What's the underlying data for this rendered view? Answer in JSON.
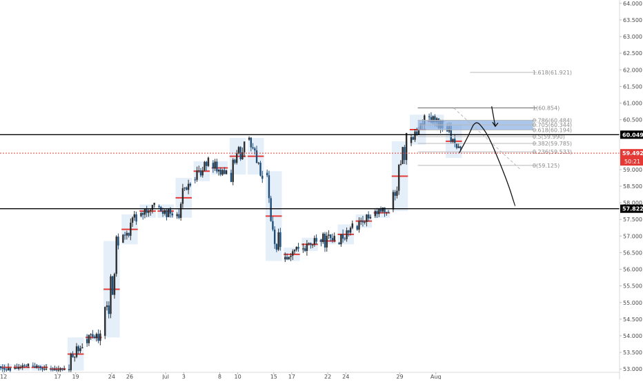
{
  "colors": {
    "background": "#ffffff",
    "up_candle": "#2e2e2e",
    "down_candle": "#1f4e79",
    "pullback_candle": "#3aa0d8",
    "poc_line": "#e53935",
    "volume_profile": "#cfe2f6",
    "fib_line": "#b8b8b8",
    "fib_zone": "#8fb3e4",
    "level_line": "#000000",
    "price_line": "#e53935",
    "axis_text": "#4a4a4a",
    "level_label_bg": "#000000",
    "price_label_bg": "#e53935"
  },
  "chart_data": {
    "type": "candlestick",
    "ylim": [
      52.9,
      64.1
    ],
    "y_ticks": [
      53.0,
      53.5,
      54.0,
      54.5,
      55.0,
      55.5,
      56.0,
      56.5,
      57.0,
      57.5,
      58.0,
      58.5,
      59.0,
      59.5,
      60.0,
      60.5,
      61.0,
      61.5,
      62.0,
      62.5,
      63.0,
      63.5,
      64.0
    ],
    "y_tick_labels": [
      "53.000",
      "53.500",
      "54.000",
      "54.500",
      "55.000",
      "55.500",
      "56.000",
      "56.500",
      "57.000",
      "57.500",
      "58.000",
      "58.500",
      "59.000",
      "59.500",
      "60.000",
      "60.500",
      "61.000",
      "61.500",
      "62.000",
      "62.500",
      "63.000",
      "63.500",
      "64.000"
    ],
    "xlim": [
      -0.2,
      34.2
    ],
    "x_ticks": [
      0,
      3,
      4,
      6,
      7,
      9,
      10,
      12,
      13,
      15,
      16,
      18,
      19,
      22,
      24,
      25,
      27,
      28,
      30
    ],
    "x_tick_labels": [
      "12",
      "17",
      "19",
      "24",
      "26",
      "Jul",
      "3",
      "8",
      "10",
      "15",
      "17",
      "22",
      "24",
      "29",
      "Aug",
      "",
      "",
      "",
      ""
    ],
    "candles_daily": [
      {
        "day": 0,
        "o": 53.1,
        "h": 53.3,
        "l": 52.9,
        "c": 53.0
      },
      {
        "day": 1,
        "o": 53.0,
        "h": 53.4,
        "l": 52.9,
        "c": 53.1
      },
      {
        "day": 2,
        "o": 53.1,
        "h": 53.2,
        "l": 52.9,
        "c": 53.0
      },
      {
        "day": 3,
        "o": 53.0,
        "h": 53.1,
        "l": 52.9,
        "c": 53.0
      },
      {
        "day": 4,
        "o": 53.0,
        "h": 54.3,
        "l": 52.9,
        "c": 53.9
      },
      {
        "day": 5,
        "o": 53.9,
        "h": 54.3,
        "l": 53.4,
        "c": 54.0
      },
      {
        "day": 6,
        "o": 54.0,
        "h": 57.3,
        "l": 53.9,
        "c": 56.8
      },
      {
        "day": 7,
        "o": 56.8,
        "h": 57.9,
        "l": 56.6,
        "c": 57.6
      },
      {
        "day": 8,
        "o": 57.6,
        "h": 58.0,
        "l": 57.1,
        "c": 57.9
      },
      {
        "day": 9,
        "o": 57.9,
        "h": 58.1,
        "l": 57.2,
        "c": 57.6
      },
      {
        "day": 10,
        "o": 57.6,
        "h": 59.8,
        "l": 57.4,
        "c": 58.7
      },
      {
        "day": 11,
        "o": 58.7,
        "h": 59.4,
        "l": 58.5,
        "c": 59.2
      },
      {
        "day": 12,
        "o": 59.2,
        "h": 59.6,
        "l": 58.6,
        "c": 58.9
      },
      {
        "day": 13,
        "o": 58.9,
        "h": 60.1,
        "l": 57.8,
        "c": 59.9
      },
      {
        "day": 14,
        "o": 59.9,
        "h": 60.0,
        "l": 58.6,
        "c": 58.9
      },
      {
        "day": 15,
        "o": 58.9,
        "h": 59.0,
        "l": 56.0,
        "c": 56.3
      },
      {
        "day": 16,
        "o": 56.3,
        "h": 56.9,
        "l": 56.0,
        "c": 56.6
      },
      {
        "day": 17,
        "o": 56.6,
        "h": 57.2,
        "l": 56.3,
        "c": 56.9
      },
      {
        "day": 18,
        "o": 56.9,
        "h": 57.3,
        "l": 56.1,
        "c": 56.8
      },
      {
        "day": 19,
        "o": 56.8,
        "h": 57.6,
        "l": 56.5,
        "c": 57.3
      },
      {
        "day": 20,
        "o": 57.3,
        "h": 58.1,
        "l": 57.1,
        "c": 57.6
      },
      {
        "day": 21,
        "o": 57.6,
        "h": 58.0,
        "l": 57.2,
        "c": 57.8
      },
      {
        "day": 22,
        "o": 57.8,
        "h": 60.1,
        "l": 57.6,
        "c": 59.8
      },
      {
        "day": 23,
        "o": 59.8,
        "h": 60.9,
        "l": 59.7,
        "c": 60.6
      },
      {
        "day": 24,
        "o": 60.6,
        "h": 60.8,
        "l": 60.0,
        "c": 60.3
      },
      {
        "day": 25,
        "o": 60.3,
        "h": 60.5,
        "l": 59.1,
        "c": 59.4
      }
    ],
    "projection": [
      {
        "day": 25.3,
        "price": 59.5
      },
      {
        "day": 25.8,
        "price": 60.0
      },
      {
        "day": 26.2,
        "price": 60.5
      },
      {
        "day": 26.7,
        "price": 60.2
      },
      {
        "day": 27.1,
        "price": 59.8
      },
      {
        "day": 28.0,
        "price": 58.6
      },
      {
        "day": 28.4,
        "price": 57.9
      }
    ],
    "projection_arrow": {
      "day_from": 27.1,
      "price_from": 60.9,
      "day_to": 27.3,
      "price_to": 60.3
    },
    "horizontal_levels": [
      {
        "name": "resistance",
        "price": 60.049,
        "label": "60.049"
      },
      {
        "name": "support",
        "price": 57.822,
        "label": "57.822"
      }
    ],
    "current_price": {
      "price": 59.492,
      "label": "59.492",
      "countdown": "50:21"
    },
    "fib_retracement": {
      "day_start": 23,
      "day_end": 29.6,
      "levels": [
        {
          "ratio": "1.618",
          "price": 61.921,
          "label": "1.618(61.921)"
        },
        {
          "ratio": "1",
          "price": 60.854,
          "label": "1(60.854)"
        },
        {
          "ratio": "0.786",
          "price": 60.484,
          "label": "0.786(60.484)"
        },
        {
          "ratio": "0.705",
          "price": 60.344,
          "label": "0.705(60.344)"
        },
        {
          "ratio": "0.618",
          "price": 60.194,
          "label": "0.618(60.194)"
        },
        {
          "ratio": "0.5",
          "price": 59.99,
          "label": "0.5(59.990)"
        },
        {
          "ratio": "0.382",
          "price": 59.785,
          "label": "0.382(59.785)"
        },
        {
          "ratio": "0.236",
          "price": 59.533,
          "label": "0.236(59.533)"
        },
        {
          "ratio": "0",
          "price": 59.125,
          "label": "0(59.125)"
        }
      ],
      "zone": {
        "from_price": 60.194,
        "to_price": 60.484
      }
    }
  }
}
